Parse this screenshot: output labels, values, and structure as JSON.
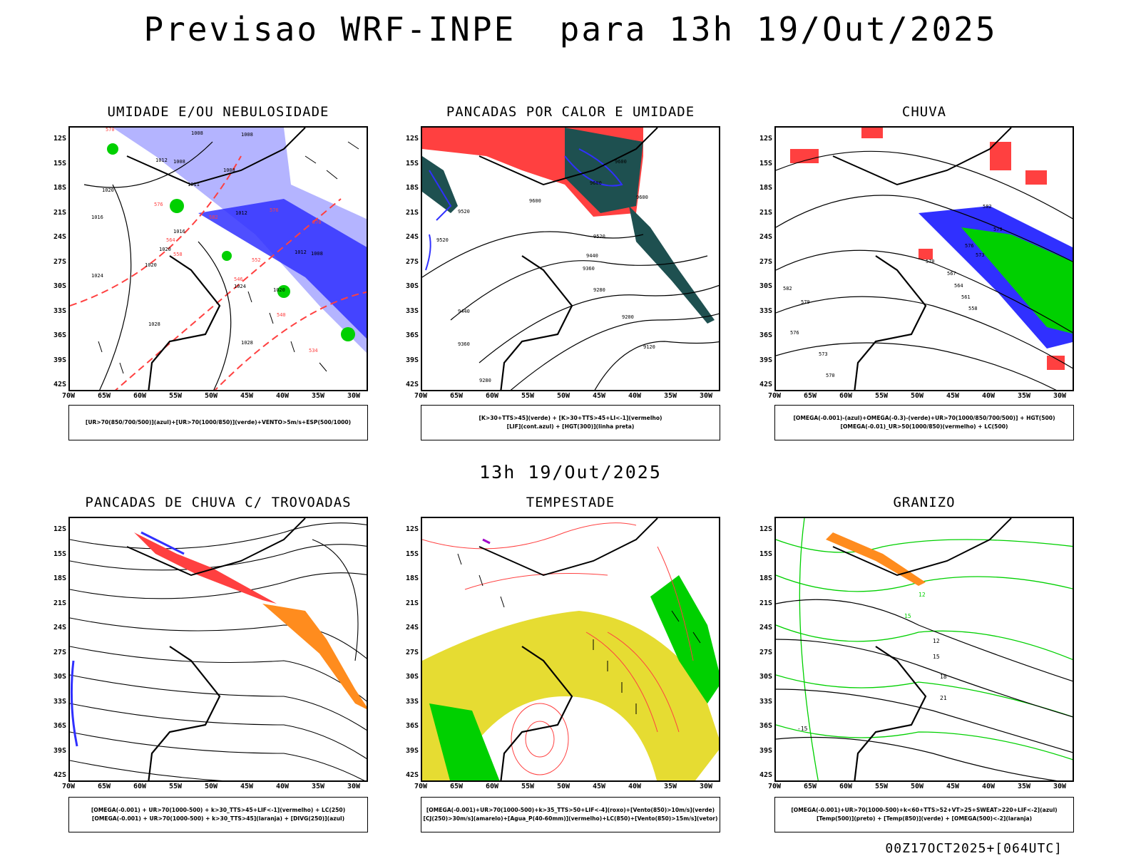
{
  "title": "Previsao WRF-INPE  para 13h 19/Out/2025",
  "subtitle": "13h 19/Out/2025",
  "footer": "00Z17OCT2025+[064UTC]",
  "lat_labels": [
    "12S",
    "15S",
    "18S",
    "21S",
    "24S",
    "27S",
    "30S",
    "33S",
    "36S",
    "39S",
    "42S"
  ],
  "lon_labels": [
    "70W",
    "65W",
    "60W",
    "55W",
    "50W",
    "45W",
    "40W",
    "35W",
    "30W"
  ],
  "colors": {
    "red": "#ff4040",
    "blue": "#3030ff",
    "green": "#00d000",
    "lavender": "#b4b4ff",
    "darkteal": "#1e5050",
    "yellow": "#e6dc32",
    "orange": "#ff8c1e",
    "purple": "#a000c8"
  },
  "panels": [
    {
      "title": "UMIDADE E/OU NEBULOSIDADE",
      "legend": [
        "[UR>70(850/700/500)](azul)+[UR>70(1000/850)](verde)+VENTO>5m/s+ESP(500/1000)"
      ],
      "labels": [
        "1008",
        "1008",
        "1008",
        "1012",
        "1008",
        "1011",
        "1020",
        "1016",
        "1012",
        "1016",
        "1020",
        "1020",
        "1024",
        "1012",
        "1008",
        "1024",
        "1020",
        "1028",
        "1028",
        "570",
        "576",
        "582",
        "564",
        "558",
        "552",
        "546",
        "540",
        "534",
        "570",
        "576"
      ]
    },
    {
      "title": "PANCADAS POR CALOR E UMIDADE",
      "legend": [
        "[K>30+TTS>45](verde) + [K>30+TTS>45+LI<-1](vermelho)",
        "[LIF](cont.azul) + [HGT(300)](linha preta)"
      ],
      "labels": [
        "9600",
        "9600",
        "9600",
        "9600",
        "9520",
        "9520",
        "9440",
        "9360",
        "9280",
        "9520",
        "9440",
        "9360",
        "9280",
        "9200",
        "9120"
      ]
    },
    {
      "title": "CHUVA",
      "legend": [
        "[OMEGA(-0.001)-(azul)+OMEGA(-0.3)-(verde)+UR>70(1000/850/700/500)] + HGT(500)",
        "[OMEGA(-0.01)_UR>50(1000/850)(vermelho) + LC(500)"
      ],
      "labels": [
        "582",
        "579",
        "576",
        "573",
        "570",
        "567",
        "564",
        "561",
        "558",
        "582",
        "579",
        "576",
        "573",
        "570"
      ]
    },
    {
      "title": "PANCADAS DE CHUVA C/ TROVOADAS",
      "legend": [
        "[OMEGA(-0.001) + UR>70(1000-500) + k>30_TTS>45+LIF<-1](vermelho) + LC(250)",
        "[OMEGA(-0.001) + UR>70(1000-500) + k>30_TTS>45](laranja) + [DIVG(250)](azul)"
      ],
      "labels": []
    },
    {
      "title": "TEMPESTADE",
      "legend": [
        "[OMEGA(-0.001)+UR>70(1000-500)+k>35_TTS>50+LIF<-4](roxo)+[Vento(850)>10m/s](verde)",
        "[CJ(250)>30m/s](amarelo)+[Agua_P(40-60mm)](vermelho)+LC(850)+[Vento(850)>15m/s](vetor)"
      ],
      "labels": []
    },
    {
      "title": "GRANIZO",
      "legend": [
        "[OMEGA(-0.001)+UR>70(1000-500)+k<60+TTS>52+VT>25+SWEAT>220+LIF<-2](azul)",
        "[Temp(500)](preto) + [Temp(850)](verde) + [OMEGA(500)<-2](laranja)"
      ],
      "labels": [
        "12",
        "15",
        "18",
        "21",
        "-15",
        "12",
        "15"
      ]
    }
  ]
}
